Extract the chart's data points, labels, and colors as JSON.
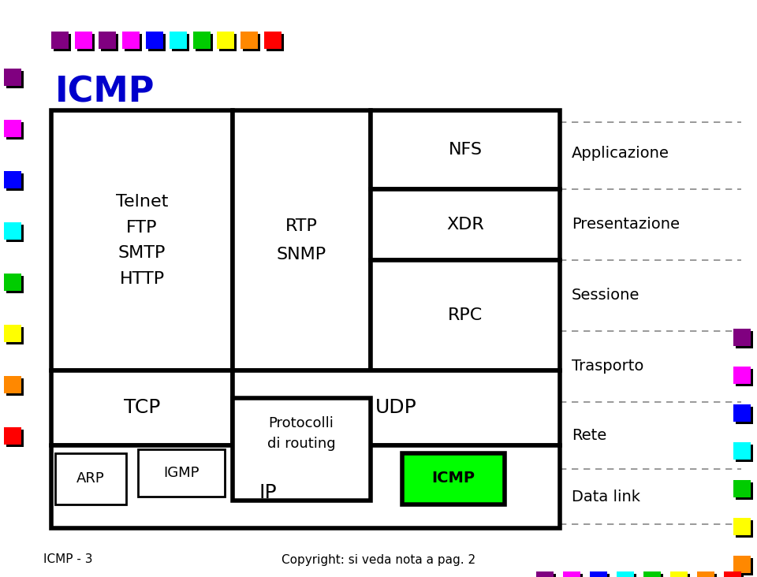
{
  "title": "ICMP",
  "title_color": "#0000CC",
  "title_fontsize": 32,
  "bg_color": "#FFFFFF",
  "footer_left": "ICMP - 3",
  "footer_right": "Copyright: si veda nota a pag. 2",
  "top_squares_colors": [
    "#800080",
    "#FF00FF",
    "#800080",
    "#FF00FF",
    "#0000FF",
    "#00FFFF",
    "#00CC00",
    "#FFFF00",
    "#FF8800",
    "#FF0000"
  ],
  "left_squares_colors": [
    "#800080",
    "#FF00FF",
    "#0000FF",
    "#00FFFF",
    "#00CC00",
    "#FFFF00",
    "#FF8800",
    "#FF0000"
  ],
  "right_squares_colors": [
    "#800080",
    "#FF00FF",
    "#0000FF",
    "#00FFFF",
    "#00CC00",
    "#FFFF00",
    "#FF8800"
  ],
  "footer_colors": [
    "#800080",
    "#FF00FF",
    "#0000FF",
    "#00FFFF",
    "#00CC00",
    "#FFFF00",
    "#FF8800",
    "#FF0000"
  ]
}
